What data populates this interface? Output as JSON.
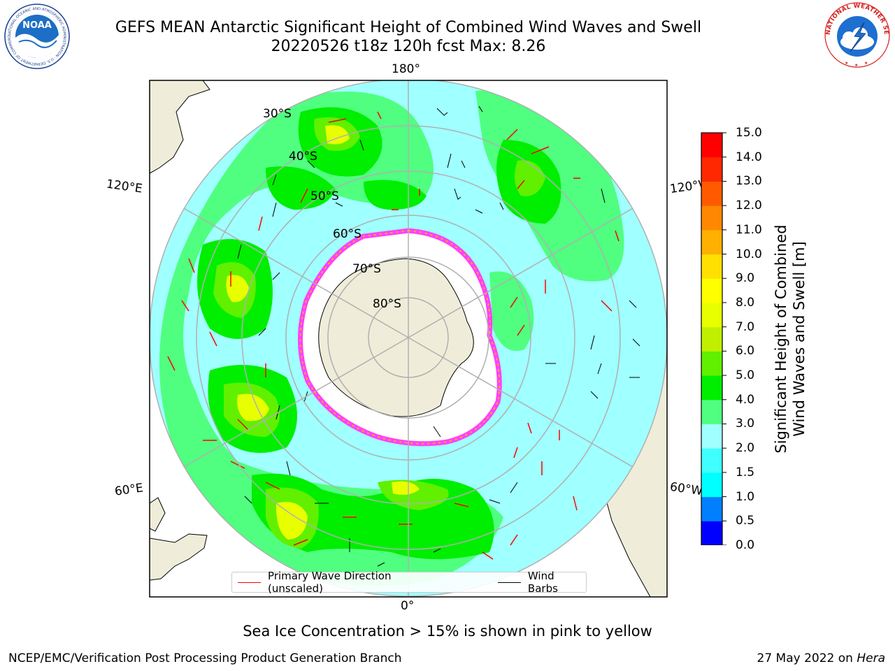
{
  "title": {
    "line1": "GEFS MEAN Antarctic Significant Height of Combined Wind Waves and Swell",
    "line2": "20220526 t18z 120h fcst   Max: 8.26"
  },
  "map": {
    "projection": "south-polar-stereographic",
    "longitude_labels": {
      "top": "180°",
      "bottom": "0°",
      "left_upper": "120°E",
      "left_lower": "60°E",
      "right_upper": "120°W",
      "right_lower": "60°W"
    },
    "latitude_labels": [
      "30°S",
      "40°S",
      "50°S",
      "60°S",
      "70°S",
      "80°S"
    ],
    "land_color": "#efedd9",
    "ice_color": "#ffffff"
  },
  "legend": {
    "items": [
      {
        "label": "Primary Wave Direction (unscaled)",
        "color": "#ff0000"
      },
      {
        "label": "Wind Barbs",
        "color": "#000000"
      }
    ]
  },
  "colorbar": {
    "label_line1": "Significant Height of Combined",
    "label_line2": "Wind Waves and Swell [m]",
    "ticks": [
      "0.0",
      "0.5",
      "1.0",
      "1.5",
      "2.0",
      "3.0",
      "4.0",
      "5.0",
      "6.0",
      "7.0",
      "8.0",
      "9.0",
      "10.0",
      "11.0",
      "12.0",
      "13.0",
      "14.0",
      "15.0"
    ],
    "colors": [
      "#0000ff",
      "#0080ff",
      "#00ffff",
      "#40ffff",
      "#a0ffff",
      "#50ff80",
      "#00ee00",
      "#60f000",
      "#c0f000",
      "#e8ff00",
      "#ffff00",
      "#ffe000",
      "#ffb000",
      "#ff8800",
      "#ff5a00",
      "#ff2800",
      "#ff0000"
    ]
  },
  "logos": {
    "noaa": {
      "text": "NOAA",
      "ring_text": "NATIONAL OCEANIC AND ATMOSPHERIC ADMINISTRATION · U.S. DEPARTMENT OF COMMERCE"
    },
    "nws": {
      "ring_text": "NATIONAL WEATHER SERVICE"
    }
  },
  "note": "Sea Ice Concentration > 15% is shown in pink to yellow",
  "footer": {
    "left": "NCEP/EMC/Verification Post Processing Product Generation Branch",
    "right_prefix": "27 May 2022 on ",
    "right_host": "Hera"
  }
}
